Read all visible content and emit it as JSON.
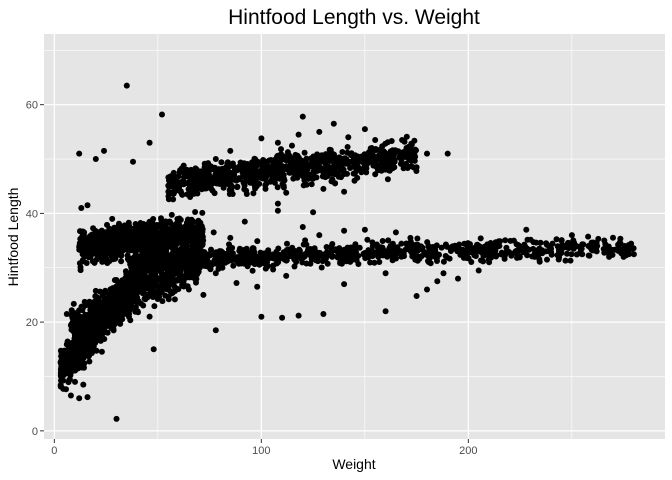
{
  "chart_data": {
    "type": "scatter",
    "title": "Hintfood Length vs. Weight",
    "xlabel": "Weight",
    "ylabel": "Hintfood Length",
    "xlim": [
      -5,
      295
    ],
    "ylim": [
      -1.5,
      73
    ],
    "x_ticks": [
      0,
      100,
      200
    ],
    "y_ticks": [
      0,
      20,
      40,
      60
    ],
    "x_tick_labels": [
      "0",
      "100",
      "200"
    ],
    "y_tick_labels": [
      "0",
      "20",
      "40",
      "60"
    ],
    "grid": true,
    "panel_color": "#e5e5e5",
    "grid_color": "#ffffff",
    "point_color": "#000000",
    "points": [
      [
        35,
        63.5
      ],
      [
        52,
        58.2
      ],
      [
        12,
        51
      ],
      [
        24,
        51.5
      ],
      [
        20,
        50
      ],
      [
        38,
        49.5
      ],
      [
        46,
        53
      ],
      [
        190,
        51
      ],
      [
        120,
        57.8
      ],
      [
        135,
        56.5
      ],
      [
        150,
        55.5
      ],
      [
        30,
        2.2
      ],
      [
        8,
        6.5
      ],
      [
        12,
        6
      ],
      [
        16,
        6.2
      ],
      [
        10,
        9
      ],
      [
        14,
        8.5
      ],
      [
        78,
        18.5
      ],
      [
        100,
        21
      ],
      [
        118,
        21.2
      ],
      [
        130,
        21.5
      ],
      [
        110,
        20.8
      ],
      [
        160,
        22
      ],
      [
        175,
        24.8
      ],
      [
        108,
        41.8
      ],
      [
        108,
        40.5
      ],
      [
        125,
        40.2
      ],
      [
        140,
        44
      ],
      [
        48,
        15
      ],
      [
        8,
        12.5
      ],
      [
        6,
        21.5
      ],
      [
        16,
        41.5
      ],
      [
        13,
        41
      ],
      [
        280,
        32.5
      ],
      [
        275,
        32
      ],
      [
        268,
        32
      ],
      [
        262,
        33
      ],
      [
        258,
        34
      ],
      [
        255,
        32.5
      ],
      [
        250,
        36
      ],
      [
        245,
        35
      ],
      [
        240,
        33.5
      ],
      [
        238,
        31.5
      ],
      [
        232,
        32
      ],
      [
        228,
        37
      ],
      [
        222,
        35
      ],
      [
        215,
        34
      ],
      [
        210,
        31
      ],
      [
        205,
        29.5
      ],
      [
        195,
        28
      ],
      [
        188,
        29
      ],
      [
        185,
        27.5
      ],
      [
        180,
        26
      ],
      [
        172,
        35.5
      ],
      [
        165,
        36.5
      ],
      [
        150,
        37
      ],
      [
        140,
        36.8
      ],
      [
        128,
        36
      ],
      [
        120,
        37.5
      ],
      [
        92,
        38.5
      ],
      [
        85,
        35.5
      ],
      [
        77,
        36.5
      ],
      [
        70,
        33.5
      ],
      [
        78,
        29
      ],
      [
        88,
        27.2
      ],
      [
        62,
        32.5
      ],
      [
        55,
        29
      ],
      [
        58,
        27.5
      ],
      [
        65,
        26
      ],
      [
        72,
        25
      ],
      [
        98,
        26.5
      ],
      [
        112,
        28.5
      ],
      [
        140,
        27
      ],
      [
        160,
        29
      ],
      [
        175,
        48.5
      ],
      [
        180,
        51
      ],
      [
        168,
        50.5
      ],
      [
        60,
        45.5
      ],
      [
        58,
        44
      ],
      [
        72,
        46
      ],
      [
        84,
        47.5
      ],
      [
        95,
        46.8
      ],
      [
        102,
        44.5
      ],
      [
        112,
        43.8
      ],
      [
        130,
        44.5
      ],
      [
        145,
        46
      ],
      [
        155,
        47.2
      ],
      [
        162,
        48
      ],
      [
        100,
        53.8
      ],
      [
        85,
        51.5
      ],
      [
        78,
        50
      ],
      [
        108,
        53
      ],
      [
        118,
        54.5
      ],
      [
        128,
        55
      ],
      [
        142,
        54
      ],
      [
        155,
        53.5
      ],
      [
        168,
        53.5
      ]
    ]
  }
}
